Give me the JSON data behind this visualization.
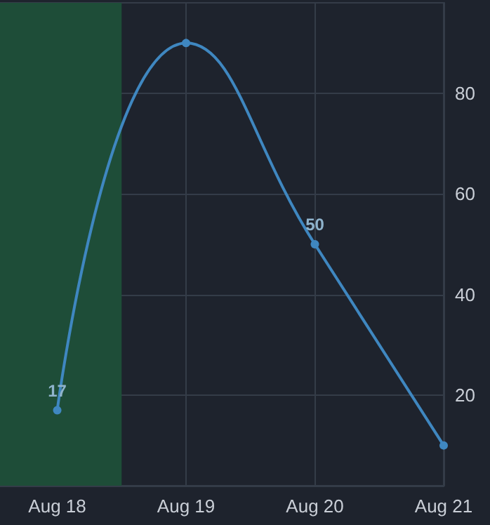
{
  "chart_data": {
    "type": "line",
    "x": [
      "--08-18",
      "--08-19",
      "--08-20",
      "--08-21"
    ],
    "series": [
      {
        "color": "#3f87c0",
        "values": [
          17,
          90,
          50,
          10
        ],
        "value_labels": [
          "17",
          null,
          "50",
          null
        ]
      }
    ],
    "xlim": [
      "--08-17T13:20",
      "--08-21"
    ],
    "xticks": [
      {
        "value": "--08-18",
        "label": "Aug 18"
      },
      {
        "value": "--08-19",
        "label": "Aug 19"
      },
      {
        "value": "--08-20",
        "label": "Aug 20"
      },
      {
        "value": "--08-21",
        "label": "Aug 21"
      }
    ],
    "ylim": [
      2,
      98
    ],
    "yticks": [
      20,
      40,
      60,
      80
    ],
    "bands": [
      {
        "axis": "x",
        "from": "--08-17T13:20",
        "to": "--08-18T12:00",
        "color": "#1e4d38"
      }
    ],
    "grid": true,
    "marker": "circle",
    "line_style": "solid"
  }
}
